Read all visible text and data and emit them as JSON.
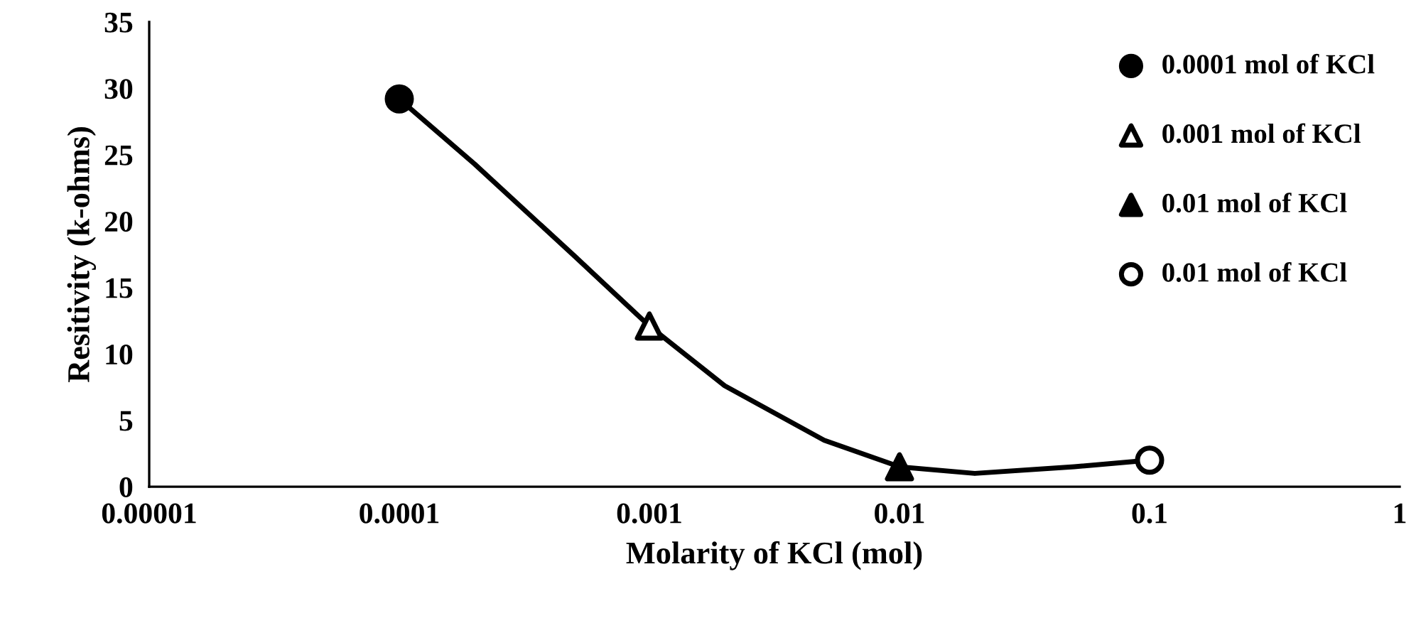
{
  "chart_data": {
    "type": "scatter",
    "xlabel": "Molarity of KCl (mol)",
    "ylabel": "Resitivity (k-ohms)",
    "log": "x",
    "xlim": [
      1e-05,
      1
    ],
    "xticks": [
      {
        "value": 1e-05,
        "label": "0.00001"
      },
      {
        "value": 0.0001,
        "label": "0.0001"
      },
      {
        "value": 0.001,
        "label": "0.001"
      },
      0.01,
      0.1,
      1
    ],
    "ylim": [
      0,
      35
    ],
    "yticks": [
      0,
      5,
      10,
      15,
      20,
      25,
      30,
      35
    ],
    "grid": false,
    "legend": "right",
    "series": [
      {
        "type": "line",
        "color": "#000000",
        "marker": "none",
        "line_style": "solid",
        "x": [
          0.0001,
          0.0002,
          0.0005,
          0.001,
          0.002,
          0.005,
          0.01,
          0.02,
          0.05,
          0.1
        ],
        "values": [
          29.2,
          24.3,
          17.4,
          12.1,
          7.6,
          3.5,
          1.5,
          1.0,
          1.5,
          2.0
        ]
      },
      {
        "name": "0.0001 mol of KCl",
        "color": "#000000",
        "marker": "circle",
        "x": [
          0.0001
        ],
        "values": [
          29.2
        ]
      },
      {
        "name": "0.001 mol of KCl",
        "color": "#ffffff",
        "marker": "triangle",
        "x": [
          0.001
        ],
        "values": [
          12.1
        ]
      },
      {
        "name": "0.01 mol of KCl",
        "color": "#000000",
        "marker": "triangle",
        "x": [
          0.01
        ],
        "values": [
          1.5
        ]
      },
      {
        "name": "0.01 mol of KCl",
        "color": "#ffffff",
        "marker": "circle",
        "x": [
          0.1
        ],
        "values": [
          2.0
        ]
      }
    ]
  }
}
